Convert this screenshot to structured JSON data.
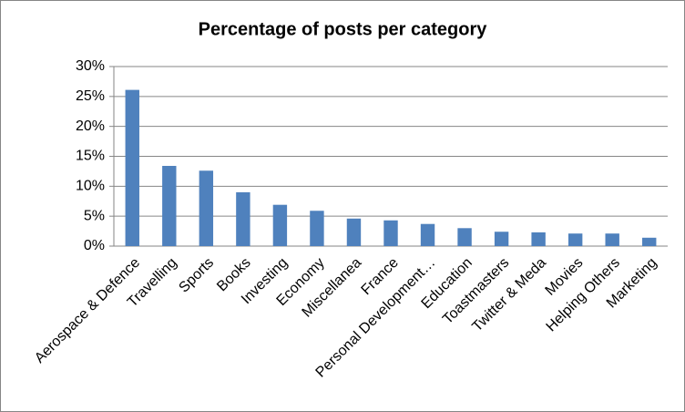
{
  "chart_data": {
    "type": "bar",
    "title": "Percentage of posts per category",
    "categories": [
      "Aerospace & Defence",
      "Travelling",
      "Sports",
      "Books",
      "Investing",
      "Economy",
      "Miscellanea",
      "France",
      "Personal Development…",
      "Education",
      "Toastmasters",
      "Twitter & Meda",
      "Movies",
      "Helping Others",
      "Marketing"
    ],
    "values": [
      26.1,
      13.4,
      12.6,
      9.0,
      6.9,
      5.9,
      4.6,
      4.3,
      3.7,
      3.0,
      2.4,
      2.3,
      2.1,
      2.1,
      1.4
    ],
    "color": "#4f81bd",
    "ylim": [
      0,
      30
    ],
    "yticks": [
      {
        "value": 0,
        "label": "0%"
      },
      {
        "value": 5,
        "label": "5%"
      },
      {
        "value": 10,
        "label": "10%"
      },
      {
        "value": 15,
        "label": "15%"
      },
      {
        "value": 20,
        "label": "20%"
      },
      {
        "value": 25,
        "label": "25%"
      },
      {
        "value": 30,
        "label": "30%"
      }
    ],
    "grid": true
  }
}
